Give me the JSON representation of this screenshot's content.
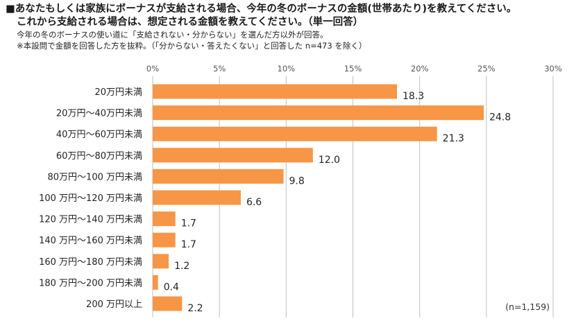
{
  "header": {
    "title_line1": "■あなたもしくは家族にボーナスが支給される場合、今年の冬のボーナスの金額(世帯あたり)を教えてください。",
    "title_line2": "これから支給される場合は、想定される金額を教えてください。（単一回答）",
    "note1": "今年の冬のボーナスの使い道に「支給されない・分からない」を選んだ方以外が回答。",
    "note2": "※本設問で金額を回答した方を抜粋。（「分からない・答えたくない」と回答した n=473 を除く）"
  },
  "chart_data": {
    "type": "bar",
    "orientation": "horizontal",
    "categories": [
      "20万円未満",
      "20万円～40万円未満",
      "40万円～60万円未満",
      "60万円～80万円未満",
      "80万円～100 万円未満",
      "100 万円～120 万円未満",
      "120 万円～140 万円未満",
      "140 万円～160 万円未満",
      "160 万円～180 万円未満",
      "180 万円～200 万円未満",
      "200 万円以上"
    ],
    "values": [
      18.3,
      24.8,
      21.3,
      12.0,
      9.8,
      6.6,
      1.7,
      1.7,
      1.2,
      0.4,
      2.2
    ],
    "value_labels": [
      "18.3",
      "24.8",
      "21.3",
      "12.0",
      "9.8",
      "6.6",
      "1.7",
      "1.7",
      "1.2",
      "0.4",
      "2.2"
    ],
    "xlim": [
      0,
      30
    ],
    "ticks": [
      0,
      5,
      10,
      15,
      20,
      25,
      30
    ],
    "tick_labels": [
      "0%",
      "5%",
      "10%",
      "15%",
      "20%",
      "25%",
      "30%"
    ],
    "bar_color": "#f79646",
    "grid": true,
    "sample_note": "(n=1,159)"
  }
}
